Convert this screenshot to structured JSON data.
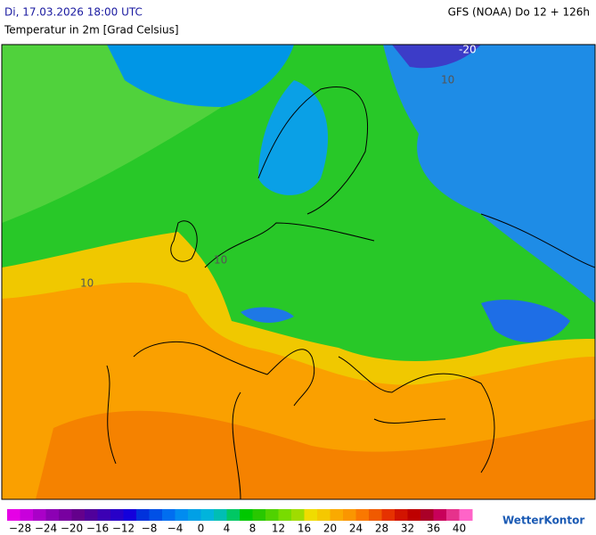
{
  "header": {
    "left_title": "Di, 17.03.2026 18:00 UTC",
    "subtitle": "Temperatur in 2m [Grad Celsius]",
    "right_title": "GFS (NOAA) Do 12 + 126h"
  },
  "map_labels": [
    "-20",
    "10",
    "10",
    "10"
  ],
  "legend": {
    "colors": [
      "#e600e6",
      "#c800dc",
      "#aa00c8",
      "#8c00b4",
      "#7800a0",
      "#64008c",
      "#50009b",
      "#3c00b4",
      "#2800c8",
      "#1400dc",
      "#0032dc",
      "#0050e6",
      "#006ef0",
      "#008cf0",
      "#00a0e6",
      "#00b4dc",
      "#00beb4",
      "#00c864",
      "#00c800",
      "#28c800",
      "#50d200",
      "#78dc00",
      "#a0dc00",
      "#f0dc00",
      "#f5c800",
      "#faaa00",
      "#fa9600",
      "#fa7800",
      "#f05a00",
      "#e63200",
      "#d21400",
      "#be0000",
      "#aa0028",
      "#c8005a",
      "#e6328c",
      "#ff64c8"
    ],
    "labels": [
      "−28",
      "−24",
      "−20",
      "−16",
      "−12",
      "−8",
      "−4",
      "0",
      "4",
      "8",
      "12",
      "16",
      "20",
      "24",
      "28",
      "32",
      "36",
      "40"
    ]
  },
  "logo": "WetterKontor"
}
